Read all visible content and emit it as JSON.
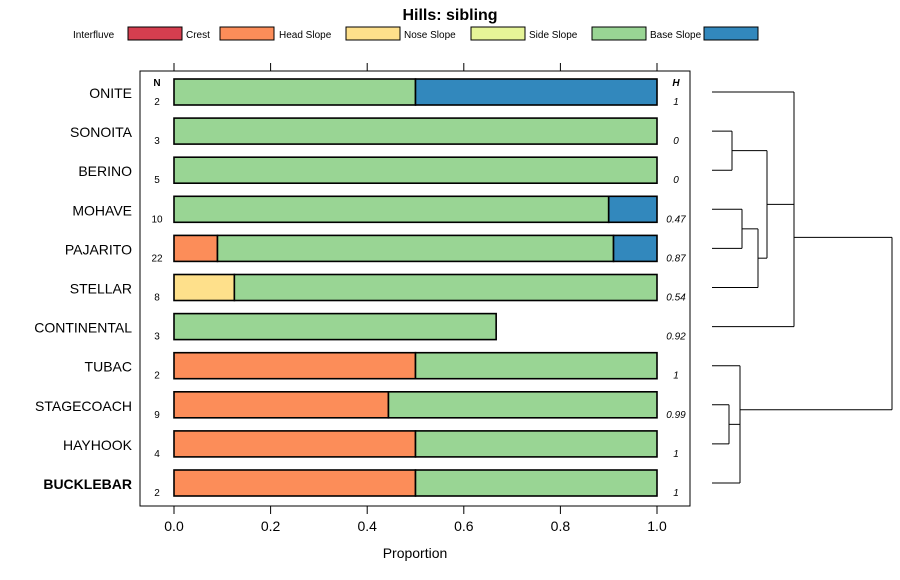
{
  "chart_data": {
    "type": "bar",
    "orientation": "horizontal",
    "stacked": true,
    "title": "Hills: sibling",
    "xlabel": "Proportion",
    "ylabel": "",
    "xlim": [
      0,
      1
    ],
    "x_ticks": [
      0.0,
      0.2,
      0.4,
      0.6,
      0.8,
      1.0
    ],
    "x_tick_labels": [
      "0.0",
      "0.2",
      "0.4",
      "0.6",
      "0.8",
      "1.0"
    ],
    "n_header": "N",
    "h_header": "H",
    "legend_position": "top",
    "legend": [
      {
        "name": "Interfluve",
        "color": "#D53E4F"
      },
      {
        "name": "Crest",
        "color": "#FC8D59"
      },
      {
        "name": "Head Slope",
        "color": "#FEE08B"
      },
      {
        "name": "Nose Slope",
        "color": "#E6F598"
      },
      {
        "name": "Side Slope",
        "color": "#99D594"
      },
      {
        "name": "Base Slope",
        "color": "#3288BD"
      }
    ],
    "categories": [
      "ONITE",
      "SONOITA",
      "BERINO",
      "MOHAVE",
      "PAJARITO",
      "STELLAR",
      "CONTINENTAL",
      "TUBAC",
      "STAGECOACH",
      "HAYHOOK",
      "BUCKLEBAR"
    ],
    "highlight": "BUCKLEBAR",
    "n": [
      "2",
      "3",
      "5",
      "10",
      "22",
      "8",
      "3",
      "2",
      "9",
      "4",
      "2"
    ],
    "h": [
      "1",
      "0",
      "0",
      "0.47",
      "0.87",
      "0.54",
      "0.92",
      "1",
      "0.99",
      "1",
      "1"
    ],
    "series": [
      {
        "name": "Interfluve",
        "values": [
          0,
          0,
          0,
          0,
          0,
          0,
          0,
          0,
          0,
          0,
          0
        ]
      },
      {
        "name": "Crest",
        "values": [
          0,
          0,
          0,
          0,
          0.09,
          0,
          0,
          0.5,
          0.444,
          0.5,
          0.5
        ]
      },
      {
        "name": "Head Slope",
        "values": [
          0,
          0,
          0,
          0,
          0,
          0.125,
          0,
          0,
          0,
          0,
          0
        ]
      },
      {
        "name": "Nose Slope",
        "values": [
          0,
          0,
          0,
          0,
          0,
          0,
          0,
          0,
          0,
          0,
          0
        ]
      },
      {
        "name": "Side Slope",
        "values": [
          0.5,
          1,
          1,
          0.9,
          0.82,
          0.875,
          0.667,
          0.5,
          0.556,
          0.5,
          0.5
        ]
      },
      {
        "name": "Base Slope",
        "values": [
          0.5,
          0,
          0,
          0.1,
          0.09,
          0,
          0,
          0,
          0,
          0,
          0
        ]
      }
    ],
    "dendrogram": {
      "description": "hierarchical clustering of series",
      "merges": [
        [
          "SONOITA",
          "BERINO"
        ],
        [
          "MOHAVE",
          "PAJARITO"
        ],
        [
          "STAGECOACH",
          "HAYHOOK"
        ],
        [
          "{MOHAVE,PAJARITO}",
          "STELLAR"
        ],
        [
          "{STAGECOACH,HAYHOOK}",
          "BUCKLEBAR"
        ],
        [
          "{SONOITA,BERINO}",
          "{MOHAVE,PAJARITO,STELLAR}"
        ],
        [
          "{...}",
          "TUBAC"
        ],
        [
          "ONITE",
          "{SONOITA..STELLAR}"
        ],
        [
          "{ONITE..STELLAR}",
          "CONTINENTAL"
        ],
        [
          "{ONITE..CONTINENTAL}",
          "{TUBAC..BUCKLEBAR}"
        ]
      ]
    }
  }
}
